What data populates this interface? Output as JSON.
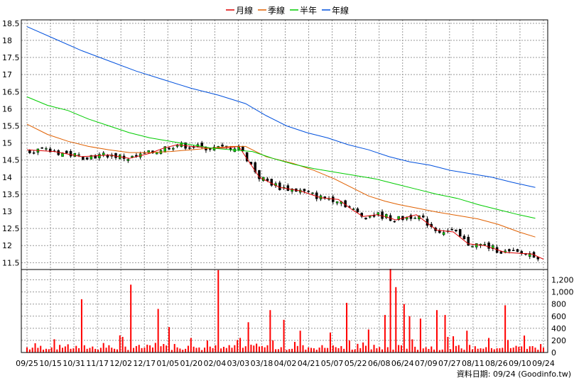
{
  "chart_data": [
    {
      "type": "line",
      "role": "price",
      "legend_position": "top-center",
      "grid": true,
      "y_axis_side": "left",
      "ylim": [
        11.3,
        18.6
      ],
      "yticks": [
        "18.5",
        "18",
        "17.5",
        "17",
        "16.5",
        "16",
        "15.5",
        "15",
        "14.5",
        "14",
        "13.5",
        "13",
        "12.5",
        "12",
        "11.5"
      ],
      "ytick_values": [
        18.5,
        18,
        17.5,
        17,
        16.5,
        16,
        15.5,
        15,
        14.5,
        14,
        13.5,
        13,
        12.5,
        12,
        11.5
      ],
      "xticks": [
        "09/25",
        "10/15",
        "10/31",
        "11/17",
        "12/02",
        "12/17",
        "01/05",
        "01/20",
        "02/04",
        "03/03",
        "03/18",
        "04/02",
        "04/21",
        "05/07",
        "05/22",
        "06/08",
        "06/24",
        "07/09",
        "07/27",
        "08/11",
        "08/26",
        "09/10",
        "09/24"
      ],
      "x_count": 250,
      "series": [
        {
          "name": "月線",
          "color": "#dd0000",
          "points": [
            [
              0,
              14.8
            ],
            [
              20,
              14.75
            ],
            [
              40,
              14.6
            ],
            [
              60,
              14.65
            ],
            [
              75,
              14.55
            ],
            [
              90,
              14.7
            ],
            [
              100,
              14.85
            ],
            [
              110,
              14.95
            ],
            [
              120,
              14.9
            ],
            [
              135,
              14.85
            ],
            [
              145,
              14.85
            ],
            [
              155,
              14.9
            ],
            [
              170,
              14.0
            ],
            [
              185,
              13.7
            ],
            [
              200,
              13.6
            ],
            [
              215,
              13.4
            ],
            [
              228,
              13.35
            ],
            [
              238,
              13.05
            ],
            [
              246,
              12.85
            ],
            [
              256,
              12.9
            ],
            [
              262,
              12.85
            ],
            [
              270,
              12.75
            ],
            [
              285,
              12.9
            ],
            [
              300,
              12.45
            ],
            [
              312,
              12.4
            ],
            [
              323,
              12.05
            ],
            [
              335,
              12.0
            ],
            [
              350,
              11.8
            ],
            [
              370,
              11.75
            ],
            [
              378,
              11.6
            ]
          ]
        },
        {
          "name": "季線",
          "color": "#e06000",
          "points": [
            [
              0,
              15.55
            ],
            [
              15,
              15.25
            ],
            [
              30,
              15.05
            ],
            [
              45,
              14.9
            ],
            [
              60,
              14.8
            ],
            [
              75,
              14.72
            ],
            [
              90,
              14.72
            ],
            [
              105,
              14.75
            ],
            [
              120,
              14.8
            ],
            [
              135,
              14.85
            ],
            [
              150,
              14.9
            ],
            [
              160,
              14.9
            ],
            [
              175,
              14.6
            ],
            [
              195,
              14.4
            ],
            [
              210,
              14.2
            ],
            [
              225,
              13.95
            ],
            [
              240,
              13.65
            ],
            [
              250,
              13.45
            ],
            [
              262,
              13.3
            ],
            [
              272,
              13.2
            ],
            [
              285,
              13.1
            ],
            [
              300,
              12.98
            ],
            [
              315,
              12.88
            ],
            [
              330,
              12.78
            ],
            [
              345,
              12.62
            ],
            [
              360,
              12.4
            ],
            [
              372,
              12.25
            ]
          ]
        },
        {
          "name": "半年",
          "color": "#00cc00",
          "points": [
            [
              0,
              16.35
            ],
            [
              15,
              16.1
            ],
            [
              30,
              15.95
            ],
            [
              45,
              15.7
            ],
            [
              60,
              15.5
            ],
            [
              75,
              15.3
            ],
            [
              90,
              15.15
            ],
            [
              105,
              15.05
            ],
            [
              120,
              14.95
            ],
            [
              135,
              14.85
            ],
            [
              150,
              14.8
            ],
            [
              165,
              14.75
            ],
            [
              180,
              14.55
            ],
            [
              195,
              14.38
            ],
            [
              210,
              14.25
            ],
            [
              225,
              14.15
            ],
            [
              240,
              14.05
            ],
            [
              255,
              13.95
            ],
            [
              270,
              13.8
            ],
            [
              285,
              13.65
            ],
            [
              300,
              13.5
            ],
            [
              315,
              13.38
            ],
            [
              330,
              13.2
            ],
            [
              345,
              13.05
            ],
            [
              360,
              12.9
            ],
            [
              372,
              12.8
            ]
          ]
        },
        {
          "name": "年線",
          "color": "#0050dd",
          "points": [
            [
              0,
              18.4
            ],
            [
              20,
              18.05
            ],
            [
              40,
              17.7
            ],
            [
              60,
              17.4
            ],
            [
              80,
              17.1
            ],
            [
              100,
              16.85
            ],
            [
              120,
              16.6
            ],
            [
              140,
              16.4
            ],
            [
              160,
              16.15
            ],
            [
              175,
              15.8
            ],
            [
              190,
              15.5
            ],
            [
              205,
              15.3
            ],
            [
              220,
              15.15
            ],
            [
              235,
              14.95
            ],
            [
              250,
              14.8
            ],
            [
              265,
              14.6
            ],
            [
              280,
              14.45
            ],
            [
              295,
              14.35
            ],
            [
              310,
              14.2
            ],
            [
              325,
              14.1
            ],
            [
              340,
              14.0
            ],
            [
              355,
              13.85
            ],
            [
              372,
              13.7
            ]
          ]
        }
      ]
    },
    {
      "type": "bar",
      "role": "volume",
      "color": "#ff0000",
      "y_axis_side": "right",
      "ylim": [
        0,
        1300
      ],
      "yticks": [
        "1,200",
        "1,000",
        "800",
        "600",
        "400",
        "200",
        "0"
      ],
      "ytick_values": [
        1200,
        1000,
        800,
        600,
        400,
        200,
        0
      ],
      "spikes": [
        [
          40,
          880
        ],
        [
          60,
          120
        ],
        [
          77,
          1120
        ],
        [
          96,
          720
        ],
        [
          104,
          420
        ],
        [
          120,
          240
        ],
        [
          141,
          1360
        ],
        [
          162,
          500
        ],
        [
          178,
          700
        ],
        [
          188,
          540
        ],
        [
          200,
          360
        ],
        [
          222,
          330
        ],
        [
          235,
          820
        ],
        [
          250,
          380
        ],
        [
          262,
          620
        ],
        [
          266,
          1380
        ],
        [
          270,
          1080
        ],
        [
          276,
          800
        ],
        [
          280,
          600
        ],
        [
          288,
          560
        ],
        [
          300,
          700
        ],
        [
          306,
          620
        ],
        [
          322,
          360
        ],
        [
          338,
          240
        ],
        [
          350,
          780
        ],
        [
          365,
          280
        ],
        [
          376,
          140
        ]
      ]
    }
  ],
  "legend": {
    "items": [
      {
        "label": "月線",
        "color": "#dd0000"
      },
      {
        "label": "季線",
        "color": "#e06000"
      },
      {
        "label": "半年",
        "color": "#00cc00"
      },
      {
        "label": "年線",
        "color": "#0050dd"
      }
    ]
  },
  "source_text": "資料日期: 09/24 (Goodinfo.tw)",
  "colors": {
    "candle_up": "#00cc00",
    "candle_down": "#000000",
    "grid": "#999999",
    "frame": "#000000"
  }
}
